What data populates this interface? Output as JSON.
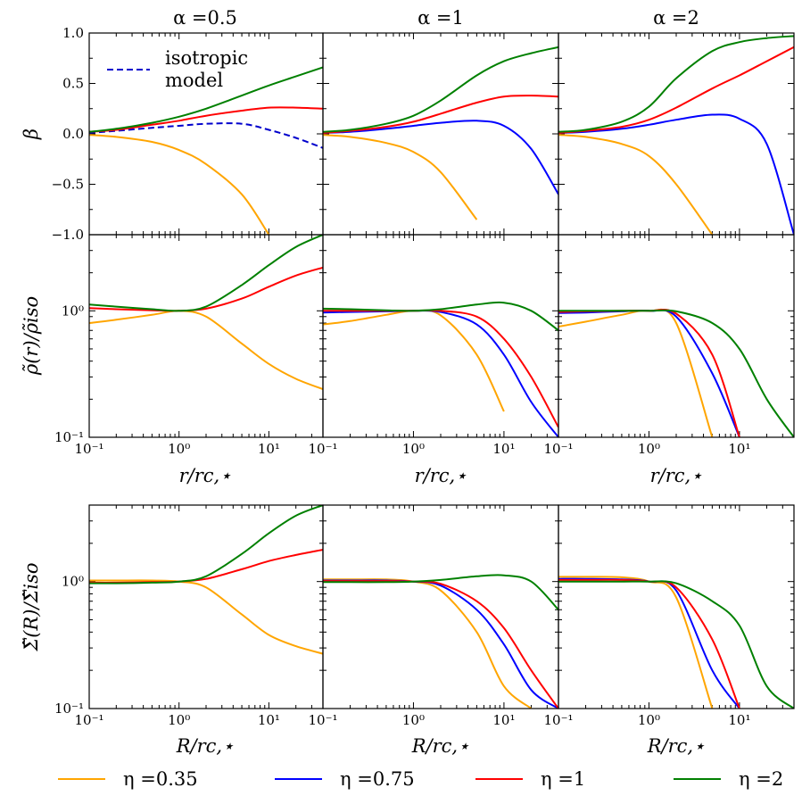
{
  "panel_titles": [
    "α =0.5",
    "α =1",
    "α =2"
  ],
  "row_labels": {
    "beta": "β",
    "rho": "ρ̃(r)/ρ̃iso",
    "sigma": "Σ̃(R)/Σ̃iso"
  },
  "x_labels": {
    "r": "r/rc,⋆",
    "R": "R/rc,⋆"
  },
  "iso_label_1": "isotropic",
  "iso_label_2": "model",
  "legend": [
    {
      "label": "η =0.35",
      "color": "#FFA500"
    },
    {
      "label": "η =0.75",
      "color": "#0000FF"
    },
    {
      "label": "η =1",
      "color": "#FF0000"
    },
    {
      "label": "η =2",
      "color": "#008000"
    }
  ],
  "ticks": {
    "beta": [
      "1.0",
      "0.5",
      "0.0",
      "−0.5",
      "−1.0"
    ],
    "log_y": [
      "10⁰",
      "10⁻¹"
    ],
    "log_x": [
      "10⁻¹",
      "10⁰",
      "10¹"
    ]
  },
  "chart_data": {
    "type": "line",
    "x_scale": "log",
    "xlim": [
      0.1,
      40
    ],
    "rows": [
      {
        "name": "beta",
        "ylabel": "β",
        "y_scale": "linear",
        "ylim": [
          -1.0,
          1.0
        ]
      },
      {
        "name": "rho",
        "ylabel": "ρ̃(r)/ρ̃iso",
        "xlabel": "r/rc,⋆",
        "y_scale": "log",
        "ylim": [
          0.1,
          4.0
        ]
      },
      {
        "name": "sigma",
        "ylabel": "Σ̃(R)/Σ̃iso",
        "xlabel": "R/rc,⋆",
        "y_scale": "log",
        "ylim": [
          0.1,
          4.0
        ]
      }
    ],
    "columns": [
      "α =0.5",
      "α =1",
      "α =2"
    ],
    "x": [
      0.1,
      0.2,
      0.5,
      1,
      2,
      5,
      10,
      20,
      40
    ],
    "panels": {
      "beta": [
        {
          "isotropic": [
            0.01,
            0.03,
            0.06,
            0.08,
            0.1,
            0.1,
            0.04,
            -0.04,
            -0.14
          ],
          "series": [
            {
              "eta": 0.35,
              "values": [
                -0.01,
                -0.03,
                -0.08,
                -0.16,
                -0.3,
                -0.6,
                -1.0,
                null,
                null
              ]
            },
            {
              "eta": 0.75,
              "values": [
                null,
                null,
                null,
                null,
                null,
                null,
                null,
                null,
                null
              ]
            },
            {
              "eta": 1,
              "values": [
                0.02,
                0.04,
                0.09,
                0.13,
                0.18,
                0.23,
                0.26,
                0.26,
                0.25
              ]
            },
            {
              "eta": 2,
              "values": [
                0.02,
                0.05,
                0.11,
                0.17,
                0.25,
                0.38,
                0.48,
                0.57,
                0.66
              ]
            }
          ]
        },
        {
          "series": [
            {
              "eta": 0.35,
              "values": [
                -0.01,
                -0.03,
                -0.09,
                -0.18,
                -0.38,
                -0.85,
                null,
                null,
                null
              ]
            },
            {
              "eta": 0.75,
              "values": [
                0.01,
                0.02,
                0.05,
                0.08,
                0.11,
                0.13,
                0.08,
                -0.15,
                -0.6
              ]
            },
            {
              "eta": 1,
              "values": [
                0.01,
                0.03,
                0.07,
                0.12,
                0.2,
                0.31,
                0.37,
                0.38,
                0.37
              ]
            },
            {
              "eta": 2,
              "values": [
                0.02,
                0.04,
                0.1,
                0.18,
                0.33,
                0.58,
                0.72,
                0.8,
                0.86
              ]
            }
          ]
        },
        {
          "series": [
            {
              "eta": 0.35,
              "values": [
                -0.01,
                -0.03,
                -0.1,
                -0.22,
                -0.5,
                -1.0,
                null,
                null,
                null
              ]
            },
            {
              "eta": 0.75,
              "values": [
                0.01,
                0.02,
                0.05,
                0.09,
                0.14,
                0.19,
                0.15,
                -0.1,
                -1.0
              ]
            },
            {
              "eta": 1,
              "values": [
                0.01,
                0.03,
                0.07,
                0.14,
                0.26,
                0.45,
                0.58,
                0.72,
                0.86
              ]
            },
            {
              "eta": 2,
              "values": [
                0.02,
                0.04,
                0.12,
                0.27,
                0.55,
                0.82,
                0.91,
                0.95,
                0.97
              ]
            }
          ]
        }
      ],
      "rho": [
        {
          "series": [
            {
              "eta": 0.35,
              "values": [
                0.8,
                0.85,
                0.93,
                1.0,
                0.9,
                0.55,
                0.38,
                0.29,
                0.24
              ]
            },
            {
              "eta": 0.75,
              "values": [
                null,
                null,
                null,
                null,
                null,
                null,
                null,
                null,
                null
              ]
            },
            {
              "eta": 1,
              "values": [
                1.05,
                1.03,
                1.01,
                1.0,
                1.04,
                1.25,
                1.55,
                1.9,
                2.2
              ]
            },
            {
              "eta": 2,
              "values": [
                1.12,
                1.08,
                1.03,
                1.0,
                1.08,
                1.6,
                2.3,
                3.2,
                4.0
              ]
            }
          ]
        },
        {
          "series": [
            {
              "eta": 0.35,
              "values": [
                0.78,
                0.83,
                0.93,
                1.0,
                0.92,
                0.45,
                0.16,
                null,
                null
              ]
            },
            {
              "eta": 0.75,
              "values": [
                0.97,
                0.98,
                0.99,
                1.0,
                0.98,
                0.78,
                0.45,
                0.19,
                0.1
              ]
            },
            {
              "eta": 1,
              "values": [
                1.0,
                1.0,
                1.0,
                1.0,
                1.0,
                0.9,
                0.6,
                0.3,
                0.12
              ]
            },
            {
              "eta": 2,
              "values": [
                1.04,
                1.03,
                1.01,
                1.0,
                1.03,
                1.12,
                1.16,
                1.0,
                0.7
              ]
            }
          ]
        },
        {
          "series": [
            {
              "eta": 0.35,
              "values": [
                0.75,
                0.82,
                0.93,
                1.0,
                0.8,
                0.1,
                null,
                null,
                null
              ]
            },
            {
              "eta": 0.75,
              "values": [
                0.96,
                0.97,
                0.99,
                1.0,
                0.9,
                0.32,
                0.1,
                null,
                null
              ]
            },
            {
              "eta": 1,
              "values": [
                0.98,
                0.99,
                1.0,
                1.0,
                0.95,
                0.45,
                0.1,
                null,
                null
              ]
            },
            {
              "eta": 2,
              "values": [
                1.0,
                1.0,
                1.0,
                1.0,
                0.99,
                0.8,
                0.5,
                0.2,
                0.1
              ]
            }
          ]
        }
      ],
      "sigma": [
        {
          "series": [
            {
              "eta": 0.35,
              "values": [
                1.02,
                1.02,
                1.02,
                1.0,
                0.9,
                0.55,
                0.38,
                0.31,
                0.27
              ]
            },
            {
              "eta": 0.75,
              "values": [
                null,
                null,
                null,
                null,
                null,
                null,
                null,
                null,
                null
              ]
            },
            {
              "eta": 1,
              "values": [
                0.98,
                0.98,
                0.99,
                1.0,
                1.05,
                1.25,
                1.45,
                1.62,
                1.78
              ]
            },
            {
              "eta": 2,
              "values": [
                0.97,
                0.97,
                0.98,
                1.0,
                1.1,
                1.65,
                2.4,
                3.3,
                4.0
              ]
            }
          ]
        },
        {
          "series": [
            {
              "eta": 0.35,
              "values": [
                1.04,
                1.04,
                1.04,
                1.0,
                0.85,
                0.4,
                0.15,
                0.1,
                null
              ]
            },
            {
              "eta": 0.75,
              "values": [
                1.02,
                1.02,
                1.02,
                1.0,
                0.93,
                0.6,
                0.32,
                0.14,
                0.1
              ]
            },
            {
              "eta": 1,
              "values": [
                1.01,
                1.01,
                1.01,
                1.0,
                0.96,
                0.7,
                0.43,
                0.2,
                0.1
              ]
            },
            {
              "eta": 2,
              "values": [
                0.99,
                0.99,
                0.99,
                1.0,
                1.03,
                1.1,
                1.12,
                1.0,
                0.6
              ]
            }
          ]
        },
        {
          "series": [
            {
              "eta": 0.35,
              "values": [
                1.09,
                1.09,
                1.08,
                1.0,
                0.75,
                0.1,
                null,
                null,
                null
              ]
            },
            {
              "eta": 0.75,
              "values": [
                1.05,
                1.05,
                1.04,
                1.0,
                0.85,
                0.2,
                0.1,
                null,
                null
              ]
            },
            {
              "eta": 1,
              "values": [
                1.03,
                1.03,
                1.03,
                1.0,
                0.9,
                0.35,
                0.1,
                null,
                null
              ]
            },
            {
              "eta": 2,
              "values": [
                1.0,
                1.0,
                1.0,
                1.0,
                0.97,
                0.7,
                0.45,
                0.15,
                0.1
              ]
            }
          ]
        }
      ]
    }
  }
}
